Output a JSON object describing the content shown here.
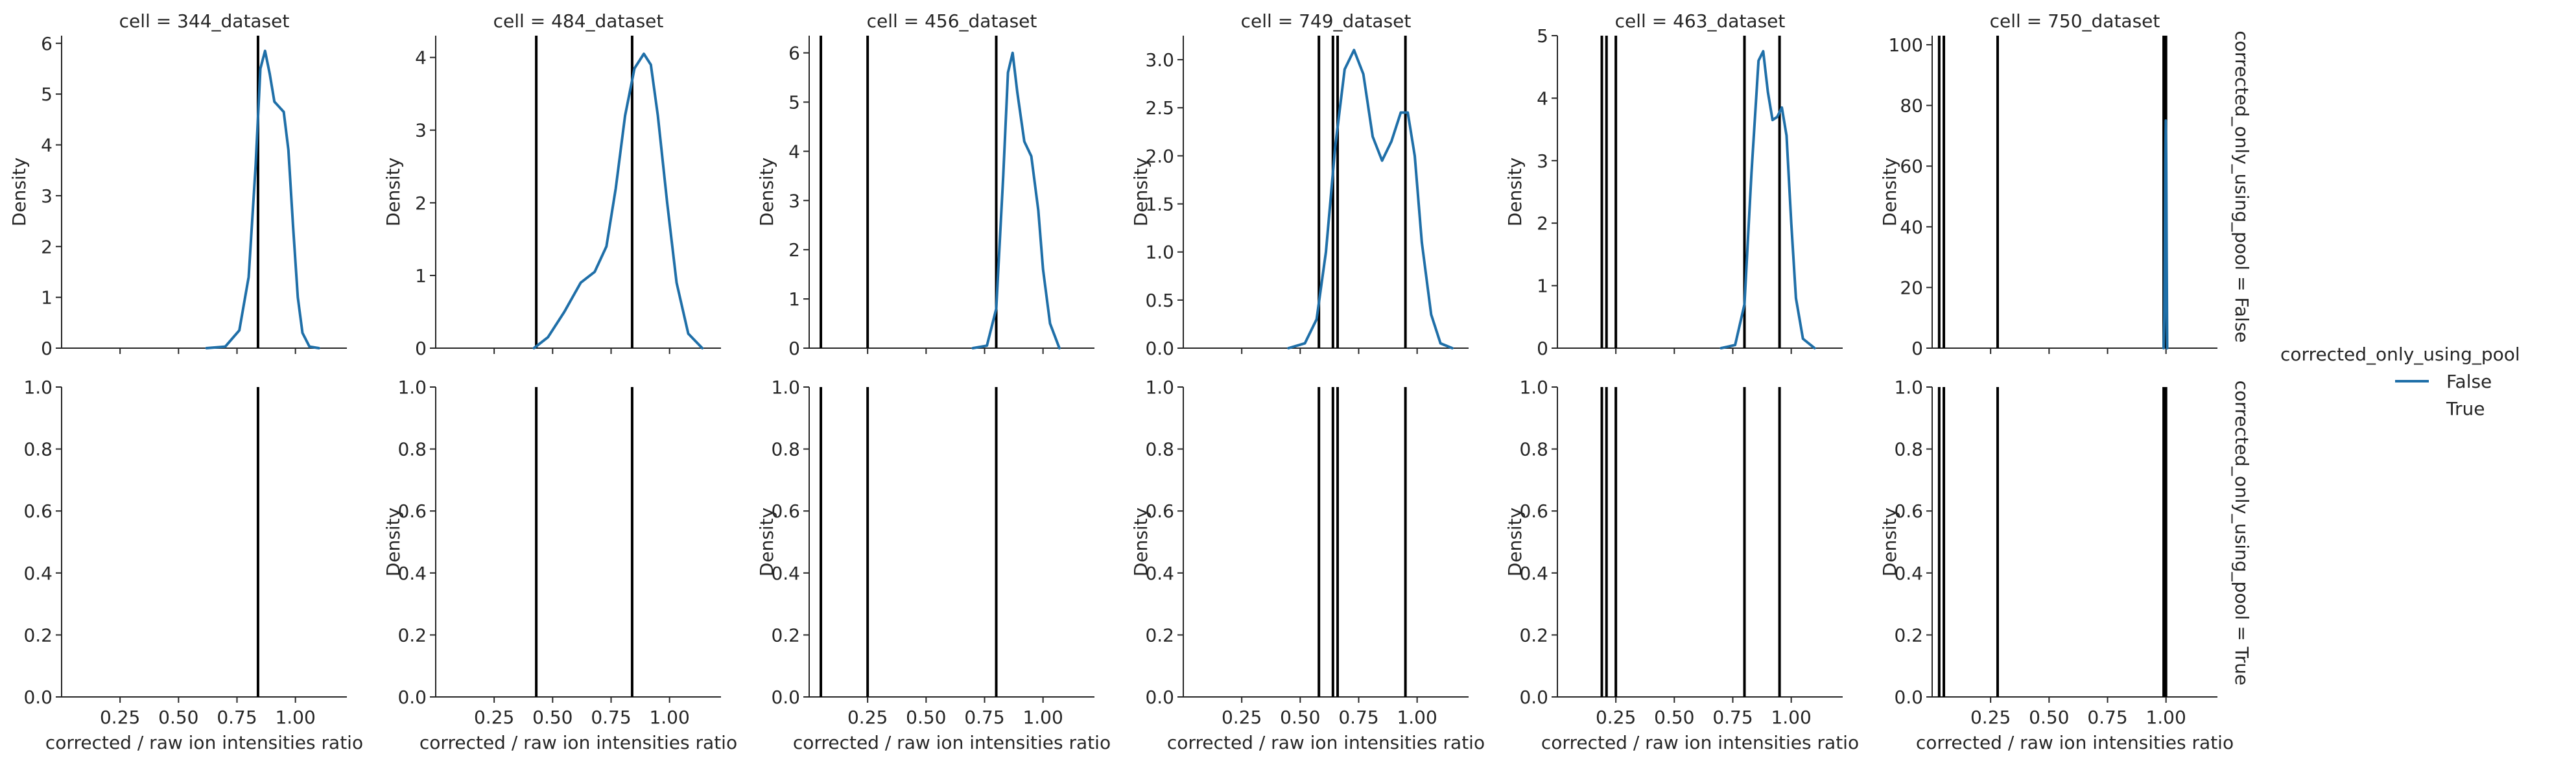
{
  "chart_data": {
    "type": "line",
    "subtype": "kde-facet-grid",
    "x_label": "corrected / raw ion intensities ratio",
    "y_label": "Density",
    "xlim": [
      0.0,
      1.22
    ],
    "x_ticks": [
      0.25,
      0.5,
      0.75,
      1.0
    ],
    "x_tick_labels": [
      "0.25",
      "0.50",
      "0.75",
      "1.00"
    ],
    "row_labels": [
      "corrected_only_using_pool = False",
      "corrected_only_using_pool = True"
    ],
    "column_titles": [
      "cell = 344_dataset",
      "cell = 484_dataset",
      "cell = 456_dataset",
      "cell = 749_dataset",
      "cell = 463_dataset",
      "cell = 750_dataset"
    ],
    "legend": {
      "title": "corrected_only_using_pool",
      "entries": [
        {
          "label": "False",
          "color": "#1f6fa8"
        },
        {
          "label": "True",
          "color": ""
        }
      ]
    },
    "colors": {
      "kde": "#1f6fa8",
      "vline": "#000000",
      "axis": "#262626"
    },
    "bottom_row": {
      "ylim": [
        0,
        1.0
      ],
      "y_ticks": [
        0.0,
        0.2,
        0.4,
        0.6,
        0.8,
        1.0
      ],
      "y_tick_labels": [
        "0.0",
        "0.2",
        "0.4",
        "0.6",
        "0.8",
        "1.0"
      ]
    },
    "panels": [
      {
        "title": "cell = 344_dataset",
        "ylim": [
          0,
          6.15
        ],
        "y_ticks": [
          0,
          1,
          2,
          3,
          4,
          5,
          6
        ],
        "y_tick_labels": [
          "0",
          "1",
          "2",
          "3",
          "4",
          "5",
          "6"
        ],
        "show_ylabel_top": true,
        "show_ylabel_bottom": false,
        "vlines": [
          0.84
        ],
        "kde": {
          "x": [
            0.62,
            0.7,
            0.76,
            0.8,
            0.83,
            0.85,
            0.87,
            0.89,
            0.91,
            0.93,
            0.95,
            0.97,
            0.99,
            1.01,
            1.03,
            1.06,
            1.1
          ],
          "y": [
            0.0,
            0.03,
            0.35,
            1.4,
            3.6,
            5.5,
            5.85,
            5.4,
            4.85,
            4.75,
            4.65,
            3.9,
            2.4,
            1.0,
            0.3,
            0.03,
            0.0
          ]
        }
      },
      {
        "title": "cell = 484_dataset",
        "ylim": [
          0,
          4.3
        ],
        "y_ticks": [
          0,
          1,
          2,
          3,
          4
        ],
        "y_tick_labels": [
          "0",
          "1",
          "2",
          "3",
          "4"
        ],
        "show_ylabel_top": true,
        "show_ylabel_bottom": true,
        "vlines": [
          0.43,
          0.84
        ],
        "kde": {
          "x": [
            0.42,
            0.48,
            0.55,
            0.62,
            0.68,
            0.73,
            0.77,
            0.81,
            0.85,
            0.89,
            0.92,
            0.95,
            0.99,
            1.03,
            1.08,
            1.14
          ],
          "y": [
            0.0,
            0.15,
            0.5,
            0.9,
            1.05,
            1.4,
            2.2,
            3.2,
            3.85,
            4.05,
            3.9,
            3.2,
            2.0,
            0.9,
            0.2,
            0.0
          ]
        }
      },
      {
        "title": "cell = 456_dataset",
        "ylim": [
          0,
          6.35
        ],
        "y_ticks": [
          0,
          1,
          2,
          3,
          4,
          5,
          6
        ],
        "y_tick_labels": [
          "0",
          "1",
          "2",
          "3",
          "4",
          "5",
          "6"
        ],
        "show_ylabel_top": true,
        "show_ylabel_bottom": true,
        "vlines": [
          0.05,
          0.25,
          0.8
        ],
        "kde": {
          "x": [
            0.7,
            0.76,
            0.8,
            0.83,
            0.85,
            0.87,
            0.89,
            0.92,
            0.95,
            0.98,
            1.0,
            1.03,
            1.07
          ],
          "y": [
            0.0,
            0.05,
            0.8,
            3.5,
            5.6,
            6.0,
            5.2,
            4.2,
            3.9,
            2.8,
            1.6,
            0.5,
            0.0
          ]
        }
      },
      {
        "title": "cell = 749_dataset",
        "ylim": [
          0,
          3.25
        ],
        "y_ticks": [
          0.0,
          0.5,
          1.0,
          1.5,
          2.0,
          2.5,
          3.0
        ],
        "y_tick_labels": [
          "0.0",
          "0.5",
          "1.0",
          "1.5",
          "2.0",
          "2.5",
          "3.0"
        ],
        "show_ylabel_top": true,
        "show_ylabel_bottom": true,
        "vlines": [
          0.58,
          0.64,
          0.66,
          0.95
        ],
        "kde": {
          "x": [
            0.45,
            0.52,
            0.57,
            0.61,
            0.65,
            0.69,
            0.73,
            0.77,
            0.81,
            0.85,
            0.89,
            0.93,
            0.96,
            0.99,
            1.02,
            1.06,
            1.1,
            1.15
          ],
          "y": [
            0.0,
            0.05,
            0.3,
            1.0,
            2.1,
            2.9,
            3.1,
            2.85,
            2.2,
            1.95,
            2.15,
            2.45,
            2.45,
            2.0,
            1.1,
            0.35,
            0.05,
            0.0
          ]
        }
      },
      {
        "title": "cell = 463_dataset",
        "ylim": [
          0,
          5.0
        ],
        "y_ticks": [
          0,
          1,
          2,
          3,
          4,
          5
        ],
        "y_tick_labels": [
          "0",
          "1",
          "2",
          "3",
          "4",
          "5"
        ],
        "show_ylabel_top": true,
        "show_ylabel_bottom": true,
        "vlines": [
          0.19,
          0.21,
          0.25,
          0.8,
          0.95
        ],
        "kde": {
          "x": [
            0.7,
            0.76,
            0.8,
            0.83,
            0.86,
            0.88,
            0.9,
            0.92,
            0.94,
            0.96,
            0.98,
            1.0,
            1.02,
            1.05,
            1.1
          ],
          "y": [
            0.0,
            0.05,
            0.7,
            2.8,
            4.6,
            4.75,
            4.1,
            3.65,
            3.7,
            3.85,
            3.4,
            2.0,
            0.8,
            0.15,
            0.0
          ]
        }
      },
      {
        "title": "cell = 750_dataset",
        "ylim": [
          0,
          103
        ],
        "y_ticks": [
          0,
          20,
          40,
          60,
          80,
          100
        ],
        "y_tick_labels": [
          "0",
          "20",
          "40",
          "60",
          "80",
          "100"
        ],
        "show_ylabel_top": true,
        "show_ylabel_bottom": true,
        "vlines": [
          0.03,
          0.05,
          0.28,
          0.99,
          1.0
        ],
        "kde": {
          "x": [
            0.99,
            0.993,
            0.995,
            0.997,
            0.999,
            1.001,
            1.003,
            1.005
          ],
          "y": [
            0.0,
            10,
            35,
            62,
            75,
            62,
            30,
            0.0
          ]
        }
      }
    ]
  }
}
